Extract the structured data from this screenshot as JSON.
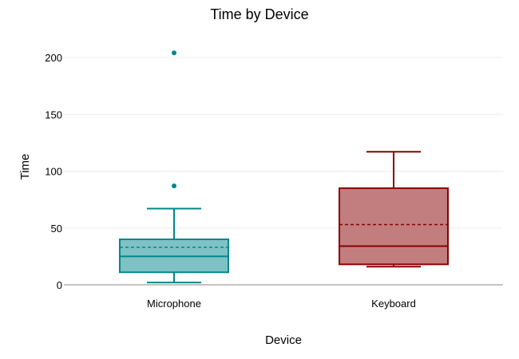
{
  "chart_data": {
    "type": "box",
    "title": "Time by Device",
    "xlabel": "Device",
    "ylabel": "Time",
    "ylim": [
      0,
      215
    ],
    "yticks": [
      0,
      50,
      100,
      150,
      200
    ],
    "grid": "horizontal",
    "series": [
      {
        "category": "Microphone",
        "color": "#00868b",
        "fill": "#7fc2c4",
        "whisker_low": 2,
        "q1": 11,
        "median": 25,
        "mean": 33,
        "q3": 40,
        "whisker_high": 67,
        "outliers": [
          87,
          204
        ]
      },
      {
        "category": "Keyboard",
        "color": "#8b0000",
        "fill": "#c27e7e",
        "whisker_low": 16,
        "q1": 18,
        "median": 34,
        "mean": 53,
        "q3": 85,
        "whisker_high": 117,
        "outliers": []
      }
    ]
  }
}
